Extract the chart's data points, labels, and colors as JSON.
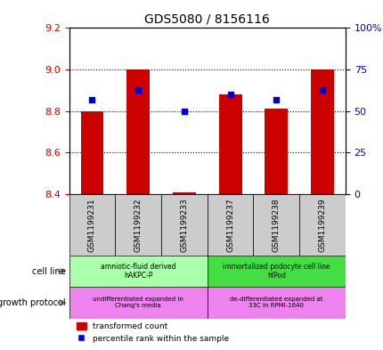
{
  "title": "GDS5080 / 8156116",
  "samples": [
    "GSM1199231",
    "GSM1199232",
    "GSM1199233",
    "GSM1199237",
    "GSM1199238",
    "GSM1199239"
  ],
  "red_values": [
    8.8,
    9.0,
    8.41,
    8.88,
    8.81,
    9.0
  ],
  "blue_values": [
    57,
    63,
    50,
    60,
    57,
    63
  ],
  "red_base": 8.4,
  "ylim_left": [
    8.4,
    9.2
  ],
  "ylim_right": [
    0,
    100
  ],
  "yticks_left": [
    8.4,
    8.6,
    8.8,
    9.0,
    9.2
  ],
  "yticks_right": [
    0,
    25,
    50,
    75,
    100
  ],
  "ytick_labels_right": [
    "0",
    "25",
    "50",
    "75",
    "100%"
  ],
  "cell_line_groups": [
    {
      "label": "amniotic-fluid derived\nhAKPC-P",
      "start": 0,
      "end": 3,
      "color": "#aaffaa"
    },
    {
      "label": "immortalized podocyte cell line\nhIPod",
      "start": 3,
      "end": 6,
      "color": "#44dd44"
    }
  ],
  "growth_protocol_groups": [
    {
      "label": "undifferentiated expanded in\nChang's media",
      "start": 0,
      "end": 3,
      "color": "#ee82ee"
    },
    {
      "label": "de-differentiated expanded at\n33C in RPMI-1640",
      "start": 3,
      "end": 6,
      "color": "#ee82ee"
    }
  ],
  "bar_color": "#cc0000",
  "dot_color": "#0000cc",
  "bar_width": 0.5,
  "dot_size": 25,
  "axis_color_left": "#cc0000",
  "axis_color_right": "#0000cc",
  "cell_line_label": "cell line",
  "growth_protocol_label": "growth protocol",
  "legend_red_label": "transformed count",
  "legend_blue_label": "percentile rank within the sample",
  "sample_box_color": "#cccccc",
  "fig_width": 4.31,
  "fig_height": 3.93,
  "dpi": 100
}
